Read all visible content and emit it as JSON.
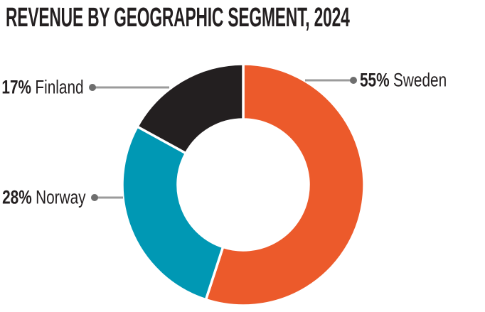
{
  "page": {
    "background": "#FFFFFF",
    "text_color": "#231F20"
  },
  "chart_data": {
    "type": "pie",
    "variant": "donut",
    "title": "REVENUE BY GEOGRAPHIC SEGMENT, 2024",
    "unit": "%",
    "categories": [
      "Sweden",
      "Norway",
      "Finland"
    ],
    "values": [
      55,
      28,
      17
    ],
    "colors": [
      "#EC5A2B",
      "#0098B4",
      "#231F20"
    ],
    "start_angle_deg": 0,
    "direction": "clockwise",
    "inner_radius_ratio": 0.54,
    "segment_gap_color": "#FFFFFF",
    "leader_line_color": "#9B9B9B",
    "leader_dot_color": "#6E6E6E",
    "legend": "none",
    "callouts": [
      {
        "pct": "55%",
        "name": "Sweden",
        "side": "right"
      },
      {
        "pct": "28%",
        "name": "Norway",
        "side": "left"
      },
      {
        "pct": "17%",
        "name": "Finland",
        "side": "left"
      }
    ]
  }
}
